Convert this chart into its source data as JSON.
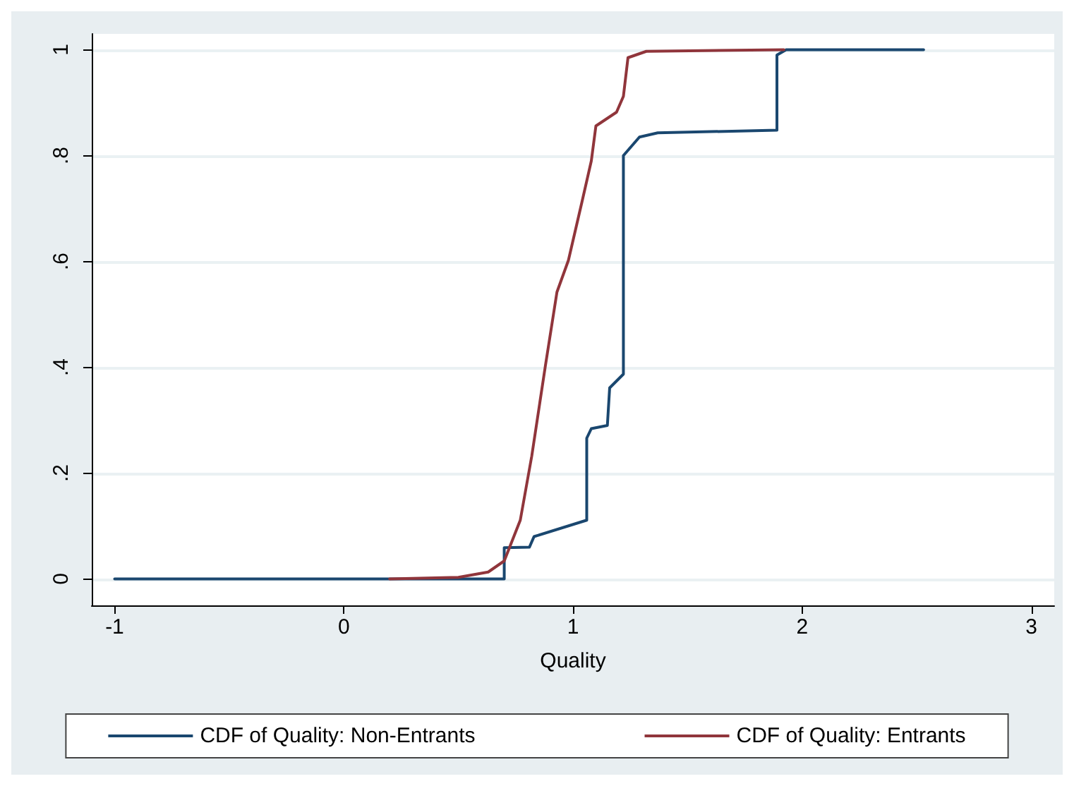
{
  "chart_data": {
    "type": "step",
    "xlabel": "Quality",
    "xlim": [
      -1.1,
      3.1
    ],
    "ylim": [
      -0.05,
      1.03
    ],
    "xticks": [
      -1,
      0,
      1,
      2,
      3
    ],
    "yticks": [
      0,
      {
        "value": 0.2,
        "label": ".2"
      },
      {
        "value": 0.4,
        "label": ".4"
      },
      {
        "value": 0.6,
        "label": ".6"
      },
      {
        "value": 0.8,
        "label": ".8"
      },
      1
    ],
    "grid": "y",
    "legend": "bottom",
    "marker": "none",
    "line_style": "solid",
    "series": [
      {
        "name": "CDF of Quality: Non-Entrants",
        "color": "#1a476f",
        "x": [
          -1,
          0.7,
          0.7,
          0.81,
          0.83,
          1.06,
          1.06,
          1.08,
          1.15,
          1.16,
          1.22,
          1.22,
          1.29,
          1.37,
          1.89,
          1.89,
          1.93,
          2.53
        ],
        "values": [
          0,
          0,
          0.059,
          0.06,
          0.08,
          0.111,
          0.266,
          0.284,
          0.29,
          0.361,
          0.387,
          0.8,
          0.835,
          0.843,
          0.848,
          0.99,
          1,
          1
        ]
      },
      {
        "name": "CDF of Quality: Entrants",
        "color": "#90353b",
        "type": "line",
        "x": [
          0.2,
          0.5,
          0.63,
          0.7,
          0.77,
          0.82,
          0.88,
          0.93,
          0.98,
          1.04,
          1.08,
          1.1,
          1.19,
          1.22,
          1.24,
          1.32,
          1.92
        ],
        "values": [
          0,
          0.003,
          0.013,
          0.034,
          0.111,
          0.232,
          0.404,
          0.542,
          0.602,
          0.714,
          0.79,
          0.856,
          0.882,
          0.912,
          0.985,
          0.997,
          1
        ]
      }
    ]
  }
}
